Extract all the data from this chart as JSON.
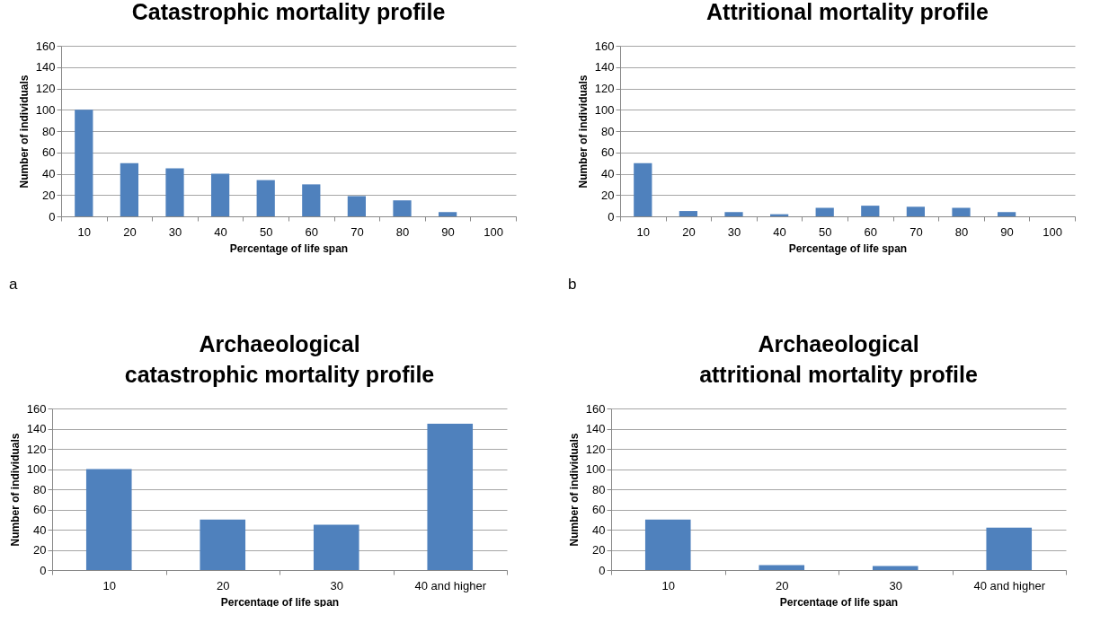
{
  "chart_data": [
    {
      "type": "bar",
      "title": "Catastrophic mortality profile",
      "xlabel": "Percentage of life span",
      "ylabel": "Number of individuals",
      "categories": [
        "10",
        "20",
        "30",
        "40",
        "50",
        "60",
        "70",
        "80",
        "90",
        "100"
      ],
      "values": [
        100,
        50,
        45,
        40,
        34,
        30,
        19,
        15,
        4,
        0
      ],
      "color": "#4f81bd",
      "ylim": [
        0,
        160
      ],
      "yticks": [
        0,
        20,
        40,
        60,
        80,
        100,
        120,
        140,
        160
      ],
      "grid": "y",
      "annotations": [
        "a"
      ]
    },
    {
      "type": "bar",
      "title": "Attritional mortality profile",
      "xlabel": "Percentage of life span",
      "ylabel": "Number of individuals",
      "categories": [
        "10",
        "20",
        "30",
        "40",
        "50",
        "60",
        "70",
        "80",
        "90",
        "100"
      ],
      "values": [
        50,
        5,
        4,
        2,
        8,
        10,
        9,
        8,
        4,
        0
      ],
      "color": "#4f81bd",
      "ylim": [
        0,
        160
      ],
      "yticks": [
        0,
        20,
        40,
        60,
        80,
        100,
        120,
        140,
        160
      ],
      "grid": "y",
      "annotations": [
        "b"
      ]
    },
    {
      "type": "bar",
      "title": "Archaeological\ncatastrophic mortality profile",
      "xlabel": "Percentage of life span",
      "ylabel": "Number of individuals",
      "categories": [
        "10",
        "20",
        "30",
        "40 and higher"
      ],
      "values": [
        100,
        50,
        45,
        145
      ],
      "color": "#4f81bd",
      "ylim": [
        0,
        160
      ],
      "yticks": [
        0,
        20,
        40,
        60,
        80,
        100,
        120,
        140,
        160
      ],
      "grid": "y"
    },
    {
      "type": "bar",
      "title": "Archaeological\nattritional mortality profile",
      "xlabel": "Percentage of life span",
      "ylabel": "Number of individuals",
      "categories": [
        "10",
        "20",
        "30",
        "40 and higher"
      ],
      "values": [
        50,
        5,
        4,
        42
      ],
      "color": "#4f81bd",
      "ylim": [
        0,
        160
      ],
      "yticks": [
        0,
        20,
        40,
        60,
        80,
        100,
        120,
        140,
        160
      ],
      "grid": "y"
    }
  ]
}
